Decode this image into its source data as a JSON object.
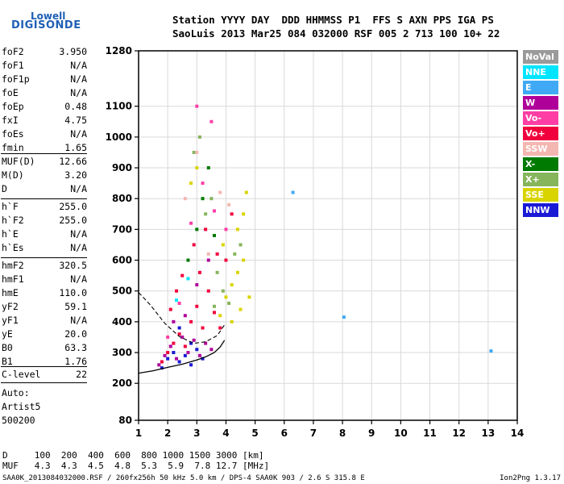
{
  "logo": {
    "line1": "Lowell",
    "line2": "DIGISONDE"
  },
  "header": {
    "line1": "Station YYYY DAY  DDD HHMMSS P1  FFS S AXN PPS IGA PS",
    "line2": "SaoLuis 2013 Mar25 084 032000 RSF 005 2 713 100 10+ 22"
  },
  "params": {
    "group1": [
      {
        "label": "foF2",
        "value": "3.950"
      },
      {
        "label": "foF1",
        "value": "N/A"
      },
      {
        "label": "foF1p",
        "value": "N/A"
      },
      {
        "label": "foE",
        "value": "N/A"
      },
      {
        "label": "foEp",
        "value": "0.48"
      },
      {
        "label": "fxI",
        "value": "4.75"
      },
      {
        "label": "foEs",
        "value": "N/A"
      },
      {
        "label": "fmin",
        "value": "1.65"
      }
    ],
    "group2": [
      {
        "label": "MUF(D)",
        "value": "12.66"
      },
      {
        "label": "M(D)",
        "value": "3.20"
      },
      {
        "label": "D",
        "value": "N/A"
      }
    ],
    "group3": [
      {
        "label": "h`F",
        "value": "255.0"
      },
      {
        "label": "h`F2",
        "value": "255.0"
      },
      {
        "label": "h`E",
        "value": "N/A"
      },
      {
        "label": "h`Es",
        "value": "N/A"
      }
    ],
    "group4": [
      {
        "label": "hmF2",
        "value": "320.5"
      },
      {
        "label": "hmF1",
        "value": "N/A"
      },
      {
        "label": "hmE",
        "value": "110.0"
      },
      {
        "label": "yF2",
        "value": "59.1"
      },
      {
        "label": "yF1",
        "value": "N/A"
      },
      {
        "label": "yE",
        "value": "20.0"
      },
      {
        "label": "B0",
        "value": "63.3"
      },
      {
        "label": "B1",
        "value": "1.76"
      }
    ],
    "group5": [
      {
        "label": "C-level",
        "value": "22"
      }
    ],
    "auto": [
      "Auto:",
      "Artist5",
      "500200"
    ]
  },
  "legend": [
    {
      "label": "NoVal",
      "color": "#9a9a9a"
    },
    {
      "label": "NNE",
      "color": "#00e5ff"
    },
    {
      "label": "E",
      "color": "#3fa9f5"
    },
    {
      "label": "W",
      "color": "#b0009a"
    },
    {
      "label": "Vo-",
      "color": "#ff3ea5"
    },
    {
      "label": "Vo+",
      "color": "#f0003c"
    },
    {
      "label": "SSW",
      "color": "#f4b6b0"
    },
    {
      "label": "X-",
      "color": "#007a00"
    },
    {
      "label": "X+",
      "color": "#86b55c"
    },
    {
      "label": "SSE",
      "color": "#d9d400"
    },
    {
      "label": "NNW",
      "color": "#1a1ad6"
    }
  ],
  "muf_table": {
    "d_line": "D     100  200  400  600  800 1000 1500 3000 [km]",
    "muf_line": "MUF   4.3  4.3  4.5  4.8  5.3  5.9  7.8 12.7 [MHz]"
  },
  "footer": {
    "left": "SAA0K_2013084032000.RSF / 260fx256h 50 kHz 5.0 km / DPS-4 SAA0K 903 / 2.6 S 315.8 E",
    "right": "Ion2Png 1.3.17"
  },
  "chart_data": {
    "type": "scatter",
    "title": "",
    "xlabel": "",
    "ylabel": "",
    "xlim": [
      1,
      14
    ],
    "ylim": [
      80,
      1280
    ],
    "x_ticks": [
      1,
      2,
      3,
      4,
      5,
      6,
      7,
      8,
      9,
      10,
      11,
      12,
      13,
      14
    ],
    "y_ticks": [
      80,
      200,
      300,
      400,
      500,
      600,
      700,
      800,
      900,
      1000,
      1100,
      1280
    ],
    "grid": true,
    "series": [
      {
        "color": "#f0003c",
        "points": [
          [
            1.8,
            270
          ],
          [
            2.0,
            300
          ],
          [
            2.2,
            330
          ],
          [
            2.4,
            360
          ],
          [
            2.6,
            320
          ],
          [
            2.8,
            400
          ],
          [
            3.0,
            450
          ],
          [
            3.2,
            380
          ],
          [
            3.4,
            500
          ],
          [
            3.6,
            430
          ],
          [
            3.8,
            380
          ],
          [
            4.0,
            600
          ],
          [
            2.5,
            550
          ],
          [
            2.9,
            650
          ],
          [
            3.3,
            700
          ],
          [
            3.7,
            620
          ],
          [
            4.2,
            750
          ],
          [
            2.1,
            440
          ],
          [
            2.3,
            500
          ],
          [
            3.1,
            560
          ]
        ]
      },
      {
        "color": "#b0009a",
        "points": [
          [
            1.7,
            260
          ],
          [
            1.9,
            290
          ],
          [
            2.1,
            320
          ],
          [
            2.3,
            280
          ],
          [
            2.5,
            350
          ],
          [
            2.7,
            300
          ],
          [
            2.9,
            340
          ],
          [
            3.1,
            290
          ],
          [
            3.3,
            330
          ],
          [
            3.5,
            310
          ],
          [
            2.2,
            400
          ],
          [
            2.6,
            420
          ],
          [
            3.0,
            520
          ],
          [
            3.4,
            600
          ]
        ]
      },
      {
        "color": "#1a1ad6",
        "points": [
          [
            1.8,
            250
          ],
          [
            2.0,
            280
          ],
          [
            2.2,
            300
          ],
          [
            2.4,
            270
          ],
          [
            2.6,
            290
          ],
          [
            2.8,
            260
          ],
          [
            3.0,
            310
          ],
          [
            3.2,
            280
          ],
          [
            2.4,
            380
          ],
          [
            2.8,
            330
          ]
        ]
      },
      {
        "color": "#d9d400",
        "points": [
          [
            3.8,
            420
          ],
          [
            4.0,
            480
          ],
          [
            4.2,
            520
          ],
          [
            4.4,
            560
          ],
          [
            4.6,
            600
          ],
          [
            4.4,
            700
          ],
          [
            4.6,
            750
          ],
          [
            4.8,
            480
          ],
          [
            4.5,
            440
          ],
          [
            4.2,
            400
          ],
          [
            3.9,
            650
          ],
          [
            2.8,
            850
          ],
          [
            3.0,
            900
          ],
          [
            4.7,
            820
          ]
        ]
      },
      {
        "color": "#86b55c",
        "points": [
          [
            3.6,
            450
          ],
          [
            3.9,
            500
          ],
          [
            4.1,
            460
          ],
          [
            4.3,
            620
          ],
          [
            3.3,
            750
          ],
          [
            3.5,
            800
          ],
          [
            2.9,
            950
          ],
          [
            3.1,
            1000
          ],
          [
            4.5,
            650
          ],
          [
            3.7,
            560
          ]
        ]
      },
      {
        "color": "#007a00",
        "points": [
          [
            3.0,
            700
          ],
          [
            3.2,
            800
          ],
          [
            3.4,
            900
          ],
          [
            2.7,
            600
          ],
          [
            3.6,
            680
          ]
        ]
      },
      {
        "color": "#ff3ea5",
        "points": [
          [
            2.0,
            350
          ],
          [
            2.4,
            460
          ],
          [
            2.8,
            720
          ],
          [
            3.2,
            850
          ],
          [
            3.6,
            760
          ],
          [
            4.0,
            700
          ],
          [
            3.5,
            1050
          ],
          [
            3.0,
            1100
          ]
        ]
      },
      {
        "color": "#f4b6b0",
        "points": [
          [
            2.6,
            800
          ],
          [
            3.0,
            950
          ],
          [
            3.4,
            620
          ],
          [
            3.8,
            820
          ],
          [
            4.1,
            780
          ]
        ]
      },
      {
        "color": "#3fa9f5",
        "points": [
          [
            6.3,
            820
          ],
          [
            8.05,
            415
          ],
          [
            13.1,
            305
          ]
        ]
      },
      {
        "color": "#00e5ff",
        "points": [
          [
            2.3,
            470
          ],
          [
            2.7,
            540
          ]
        ]
      }
    ],
    "profile": [
      [
        1.0,
        233
      ],
      [
        1.5,
        241
      ],
      [
        2.0,
        252
      ],
      [
        2.5,
        262
      ],
      [
        3.0,
        276
      ],
      [
        3.3,
        286
      ],
      [
        3.6,
        300
      ],
      [
        3.8,
        318
      ],
      [
        3.95,
        340
      ]
    ],
    "profile_dashed": [
      [
        1.0,
        495
      ],
      [
        1.4,
        455
      ],
      [
        1.9,
        395
      ],
      [
        2.4,
        352
      ],
      [
        2.9,
        330
      ],
      [
        3.3,
        335
      ],
      [
        3.7,
        355
      ],
      [
        3.95,
        390
      ]
    ]
  }
}
